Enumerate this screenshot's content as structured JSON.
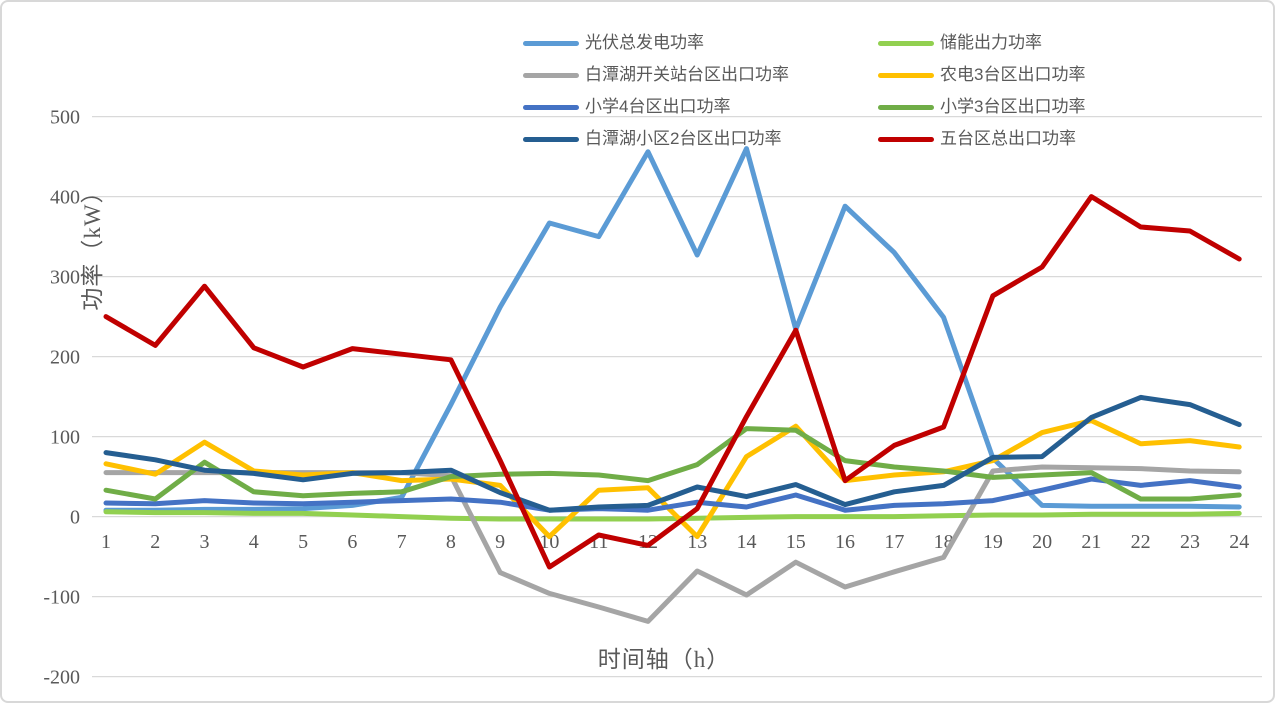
{
  "chart_data": {
    "type": "line",
    "title": "",
    "xlabel": "时间轴（h）",
    "ylabel": "功率（kW）",
    "x": [
      1,
      2,
      3,
      4,
      5,
      6,
      7,
      8,
      9,
      10,
      11,
      12,
      13,
      14,
      15,
      16,
      17,
      18,
      19,
      20,
      21,
      22,
      23,
      24
    ],
    "ylim": [
      -200,
      500
    ],
    "yticks": [
      -200,
      -100,
      0,
      100,
      200,
      300,
      400,
      500
    ],
    "grid": true,
    "legend_position": "top-center-two-columns",
    "text_color": "#595959",
    "gridline_color": "#d9d9d9",
    "series": [
      {
        "id": "pv-total",
        "name": "光伏总发电功率",
        "color": "#5B9BD5",
        "values": [
          8,
          8,
          9,
          9,
          10,
          14,
          24,
          140,
          262,
          367,
          350,
          456,
          327,
          460,
          234,
          388,
          330,
          249,
          73,
          14,
          13,
          13,
          13,
          12
        ]
      },
      {
        "id": "storage",
        "name": "储能出力功率",
        "color": "#92D050",
        "values": [
          6,
          5,
          5,
          4,
          4,
          2,
          0,
          -2,
          -3,
          -3,
          -3,
          -3,
          -2,
          -1,
          0,
          0,
          0,
          1,
          2,
          2,
          3,
          3,
          3,
          4
        ]
      },
      {
        "id": "switch-station",
        "name": "白潭湖开关站台区出口功率",
        "color": "#A5A5A5",
        "values": [
          55,
          55,
          55,
          55,
          55,
          55,
          55,
          51,
          -70,
          -96,
          -113,
          -131,
          -68,
          -98,
          -57,
          -88,
          -69,
          -51,
          57,
          62,
          61,
          60,
          57,
          56
        ]
      },
      {
        "id": "nongdian-3",
        "name": "农电3台区出口功率",
        "color": "#FFC000",
        "values": [
          66,
          53,
          93,
          57,
          52,
          55,
          45,
          47,
          39,
          -25,
          33,
          36,
          -25,
          75,
          113,
          45,
          52,
          56,
          70,
          105,
          120,
          91,
          95,
          87
        ]
      },
      {
        "id": "xiaoxue-4",
        "name": "小学4台区出口功率",
        "color": "#4472C4",
        "values": [
          17,
          16,
          20,
          17,
          16,
          18,
          20,
          22,
          18,
          8,
          10,
          8,
          18,
          12,
          27,
          8,
          14,
          16,
          20,
          33,
          47,
          39,
          45,
          37
        ]
      },
      {
        "id": "xiaoxue-3",
        "name": "小学3台区出口功率",
        "color": "#70AD47",
        "values": [
          33,
          22,
          68,
          31,
          26,
          29,
          31,
          50,
          53,
          54,
          52,
          45,
          65,
          110,
          108,
          70,
          62,
          57,
          49,
          52,
          55,
          22,
          22,
          27
        ]
      },
      {
        "id": "xiaoqu-2",
        "name": "白潭湖小区2台区出口功率",
        "color": "#255E91",
        "values": [
          80,
          71,
          58,
          54,
          46,
          54,
          55,
          58,
          30,
          8,
          12,
          14,
          37,
          25,
          40,
          15,
          31,
          39,
          74,
          75,
          124,
          149,
          140,
          115
        ]
      },
      {
        "id": "five-total",
        "name": "五台区总出口功率",
        "color": "#C00000",
        "values": [
          250,
          214,
          288,
          211,
          187,
          210,
          203,
          196,
          70,
          -63,
          -23,
          -36,
          10,
          125,
          233,
          45,
          89,
          112,
          276,
          312,
          400,
          362,
          357,
          322
        ]
      }
    ]
  }
}
